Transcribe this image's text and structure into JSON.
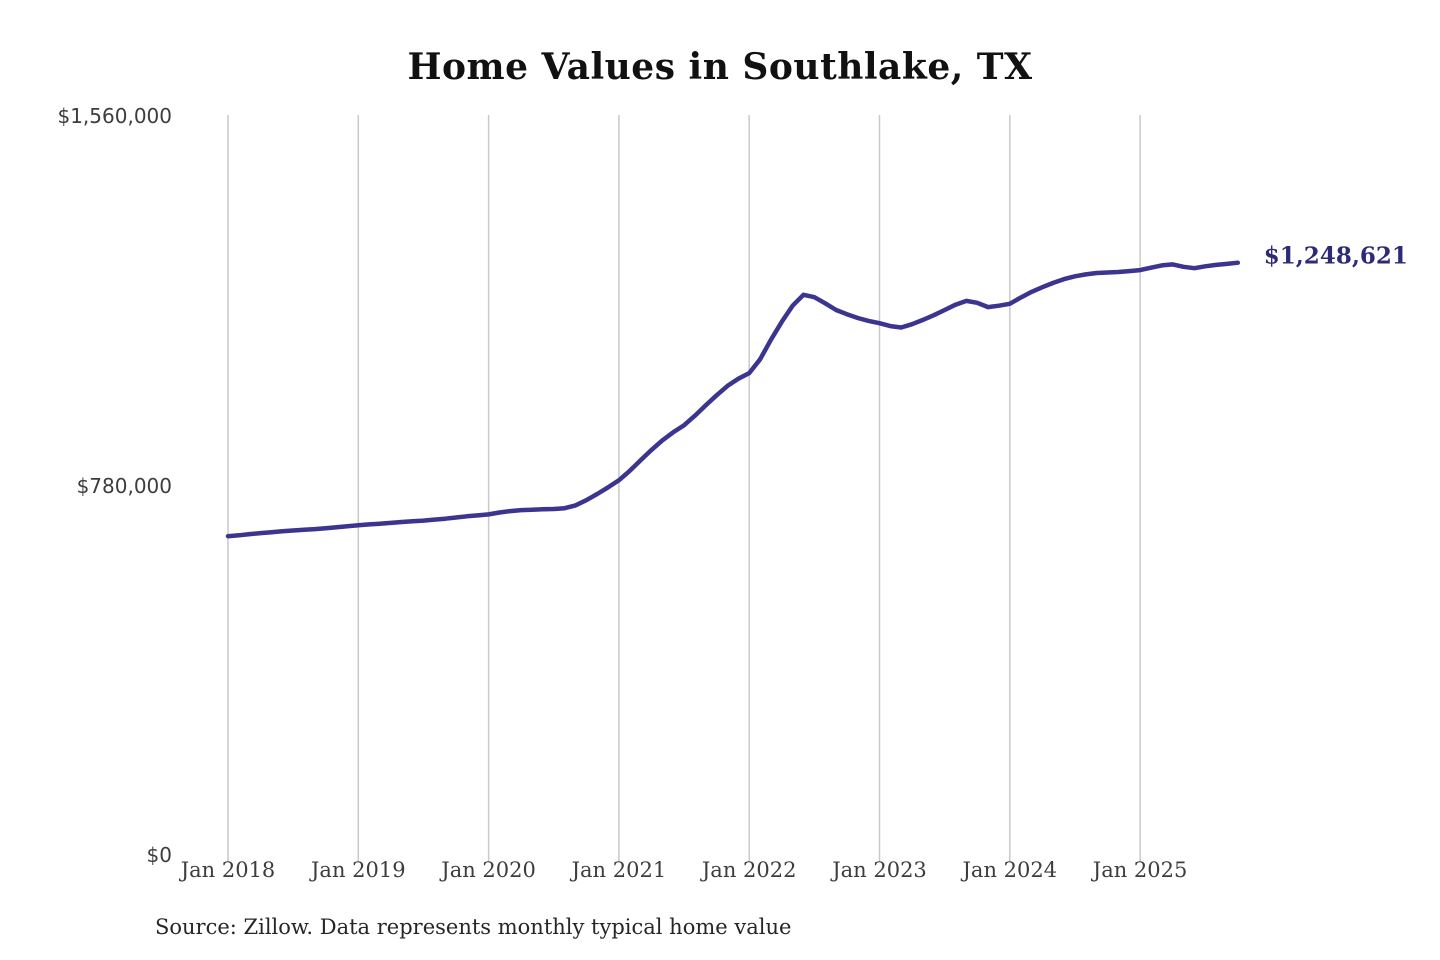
{
  "page": {
    "title": "Home Values in Southlake, TX",
    "source_note": "Source: Zillow. Data represents monthly typical home value",
    "latest_value_label": "$1,248,621"
  },
  "colors": {
    "background": "#ffffff",
    "line": "#3b3590",
    "annotation": "#2d2a78",
    "gridline": "#c9c9c9",
    "title_text": "#111111",
    "axis_text": "#3d3d3d",
    "source_text": "#262626"
  },
  "chart_data": {
    "type": "line",
    "title": "Home Values in Southlake, TX",
    "series_name": "Monthly typical home value",
    "x_start": "2018-01",
    "x_end": "2025-10",
    "x_freq": "monthly",
    "values": [
      672000,
      674000,
      676500,
      678500,
      680500,
      682500,
      684000,
      685500,
      687000,
      689000,
      691000,
      693000,
      695000,
      697000,
      698500,
      700000,
      702000,
      703500,
      705000,
      707000,
      709000,
      711500,
      714000,
      716000,
      718000,
      722000,
      725000,
      727000,
      728000,
      729000,
      729500,
      731000,
      737000,
      748000,
      761000,
      775000,
      790000,
      810000,
      832000,
      854000,
      874000,
      891000,
      906000,
      926000,
      948000,
      969000,
      989000,
      1004000,
      1016000,
      1045000,
      1086000,
      1124000,
      1158000,
      1181000,
      1176000,
      1163000,
      1149000,
      1140000,
      1132000,
      1126000,
      1121000,
      1115000,
      1112000,
      1119000,
      1128000,
      1138000,
      1149000,
      1160000,
      1168000,
      1164000,
      1155000,
      1158000,
      1162000,
      1175000,
      1187000,
      1197000,
      1206000,
      1214000,
      1220000,
      1224000,
      1227000,
      1228000,
      1229000,
      1231000,
      1233000,
      1238000,
      1243000,
      1245000,
      1240000,
      1237000,
      1241000,
      1244000,
      1246000,
      1248621
    ],
    "latest_value": 1248621,
    "x_tick_labels": [
      "Jan 2018",
      "Jan 2019",
      "Jan 2020",
      "Jan 2021",
      "Jan 2022",
      "Jan 2023",
      "Jan 2024",
      "Jan 2025"
    ],
    "y_tick_labels": [
      "$0",
      "$780,000",
      "$1,560,000"
    ],
    "y_tick_values": [
      0,
      780000,
      1560000
    ],
    "ylim": [
      0,
      1560000
    ],
    "grid": "vertical-only",
    "legend": "none",
    "annotation": {
      "text": "$1,248,621",
      "position": "line-end"
    }
  }
}
